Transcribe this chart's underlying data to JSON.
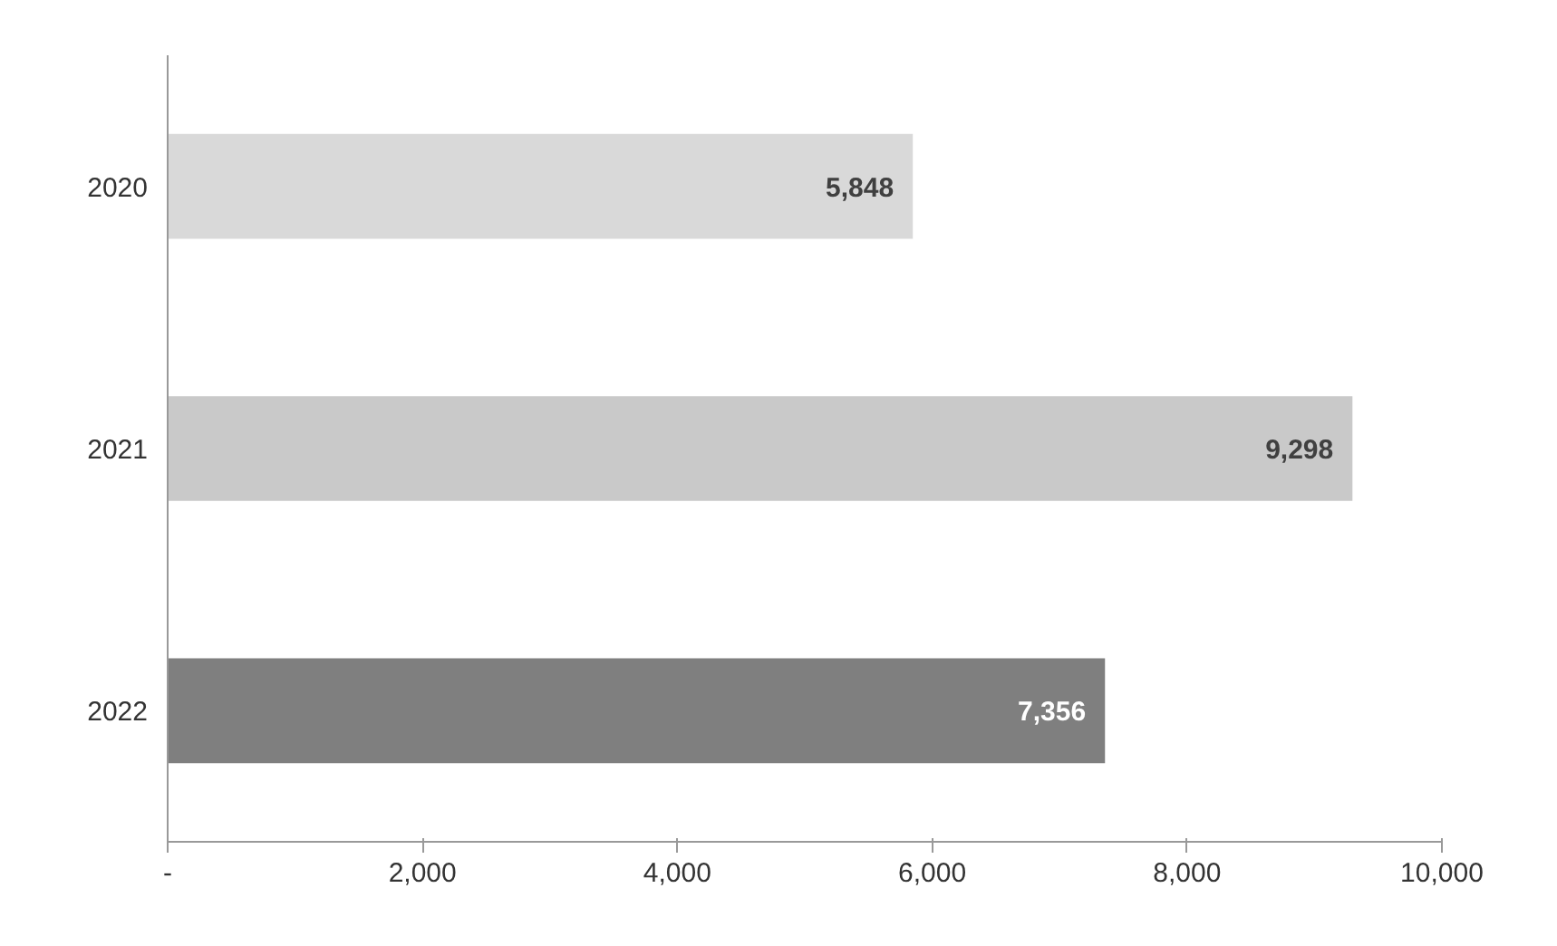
{
  "chart_data": {
    "type": "bar",
    "orientation": "horizontal",
    "categories": [
      "2020",
      "2021",
      "2022"
    ],
    "values": [
      5848,
      9298,
      7356
    ],
    "colors": [
      "#d9d9d9",
      "#c9c9c9",
      "#7f7f7f"
    ],
    "xlim": [
      0,
      10000
    ],
    "xticks": [
      {
        "value": 0,
        "label": "-"
      },
      {
        "value": 2000,
        "label": "2,000"
      },
      {
        "value": 4000,
        "label": "4,000"
      },
      {
        "value": 6000,
        "label": "6,000"
      },
      {
        "value": 8000,
        "label": "8,000"
      },
      {
        "value": 10000,
        "label": "10,000"
      }
    ],
    "value_labels": [
      "5,848",
      "9,298",
      "7,356"
    ],
    "grid": false
  }
}
